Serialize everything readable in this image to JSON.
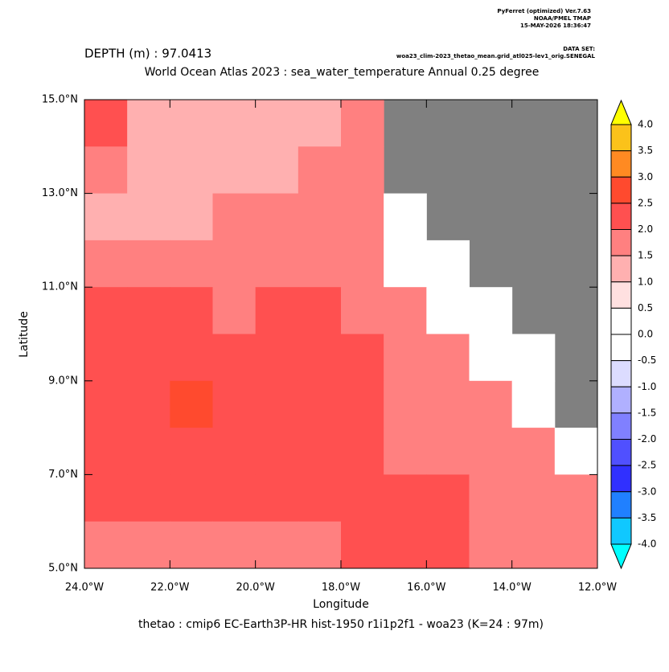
{
  "chart_data": {
    "type": "heatmap",
    "header": [
      "PyFerret (optimized) Ver.7.63",
      "NOAA/PMEL TMAP",
      "15-MAY-2026 18:36:47"
    ],
    "dataset_label": "DATA SET:",
    "dataset": "woa23_clim-2023_thetao_mean.grid_atl025-lev1_orig.SENEGAL",
    "title": "DEPTH (m) : 97.0413",
    "subtitle": "World Ocean Atlas 2023 : sea_water_temperature Annual  0.25 degree",
    "xlabel": "Longitude",
    "ylabel": "Latitude",
    "footer": "thetao : cmip6 EC-Earth3P-HR hist-1950 r1i1p2f1 - woa23  (K=24 : 97m)",
    "xlim": [
      -24,
      -12
    ],
    "ylim": [
      5,
      15
    ],
    "xticks": [
      {
        "value": -24,
        "label": "24.0°W"
      },
      {
        "value": -22,
        "label": "22.0°W"
      },
      {
        "value": -20,
        "label": "20.0°W"
      },
      {
        "value": -18,
        "label": "18.0°W"
      },
      {
        "value": -16,
        "label": "16.0°W"
      },
      {
        "value": -14,
        "label": "14.0°W"
      },
      {
        "value": -12,
        "label": "12.0°W"
      }
    ],
    "yticks": [
      {
        "value": 5,
        "label": "5.0°N"
      },
      {
        "value": 7,
        "label": "7.0°N"
      },
      {
        "value": 9,
        "label": "9.0°N"
      },
      {
        "value": 11,
        "label": "11.0°N"
      },
      {
        "value": 13,
        "label": "13.0°N"
      },
      {
        "value": 15,
        "label": "15.0°N"
      }
    ],
    "x": [
      -24,
      -23,
      -22,
      -21,
      -20,
      -19,
      -18,
      -17,
      -16,
      -15,
      -14,
      -13
    ],
    "y": [
      15,
      14,
      13,
      12,
      11,
      10,
      9,
      8,
      7,
      6
    ],
    "values": [
      [
        2.25,
        1.25,
        1.25,
        1.25,
        1.25,
        1.25,
        1.75,
        null,
        null,
        null,
        null,
        null
      ],
      [
        1.75,
        1.25,
        1.25,
        1.25,
        1.25,
        1.75,
        1.75,
        null,
        null,
        null,
        null,
        null
      ],
      [
        1.25,
        1.25,
        1.25,
        1.75,
        1.75,
        1.75,
        1.75,
        0.25,
        null,
        null,
        null,
        null
      ],
      [
        1.75,
        1.75,
        1.75,
        1.75,
        1.75,
        1.75,
        1.75,
        0.25,
        0.25,
        null,
        null,
        null
      ],
      [
        2.25,
        2.25,
        2.25,
        1.75,
        2.25,
        2.25,
        1.75,
        1.75,
        0.25,
        0.25,
        null,
        null
      ],
      [
        2.25,
        2.25,
        2.25,
        2.25,
        2.25,
        2.25,
        2.25,
        1.75,
        1.75,
        0.25,
        0.25,
        null
      ],
      [
        2.25,
        2.25,
        2.75,
        2.25,
        2.25,
        2.25,
        2.25,
        1.75,
        1.75,
        1.75,
        0.25,
        null
      ],
      [
        2.25,
        2.25,
        2.25,
        2.25,
        2.25,
        2.25,
        2.25,
        1.75,
        1.75,
        1.75,
        1.75,
        0.25
      ],
      [
        2.25,
        2.25,
        2.25,
        2.25,
        2.25,
        2.25,
        2.25,
        2.25,
        2.25,
        1.75,
        1.75,
        1.75
      ],
      [
        1.75,
        1.75,
        1.75,
        1.75,
        1.75,
        1.75,
        2.25,
        2.25,
        2.25,
        1.75,
        1.75,
        1.75
      ]
    ],
    "land_color": "#808080",
    "levels": [
      4.0,
      3.5,
      3.0,
      2.5,
      2.0,
      1.5,
      1.0,
      0.5,
      0.0,
      -0.5,
      -1.0,
      -1.5,
      -2.0,
      -2.5,
      -3.0,
      -3.5,
      -4.0
    ],
    "colors": [
      "#fbc21a",
      "#ff8a22",
      "#ff4a2e",
      "#ff5050",
      "#ff8080",
      "#ffb0b0",
      "#ffe0e0",
      "#ffffff",
      "#ffffff",
      "#dcdcff",
      "#b0b0ff",
      "#8080ff",
      "#5050ff",
      "#3030ff",
      "#2080ff",
      "#10c8ff"
    ],
    "over_color": "#ffff00",
    "under_color": "#00ffff"
  }
}
